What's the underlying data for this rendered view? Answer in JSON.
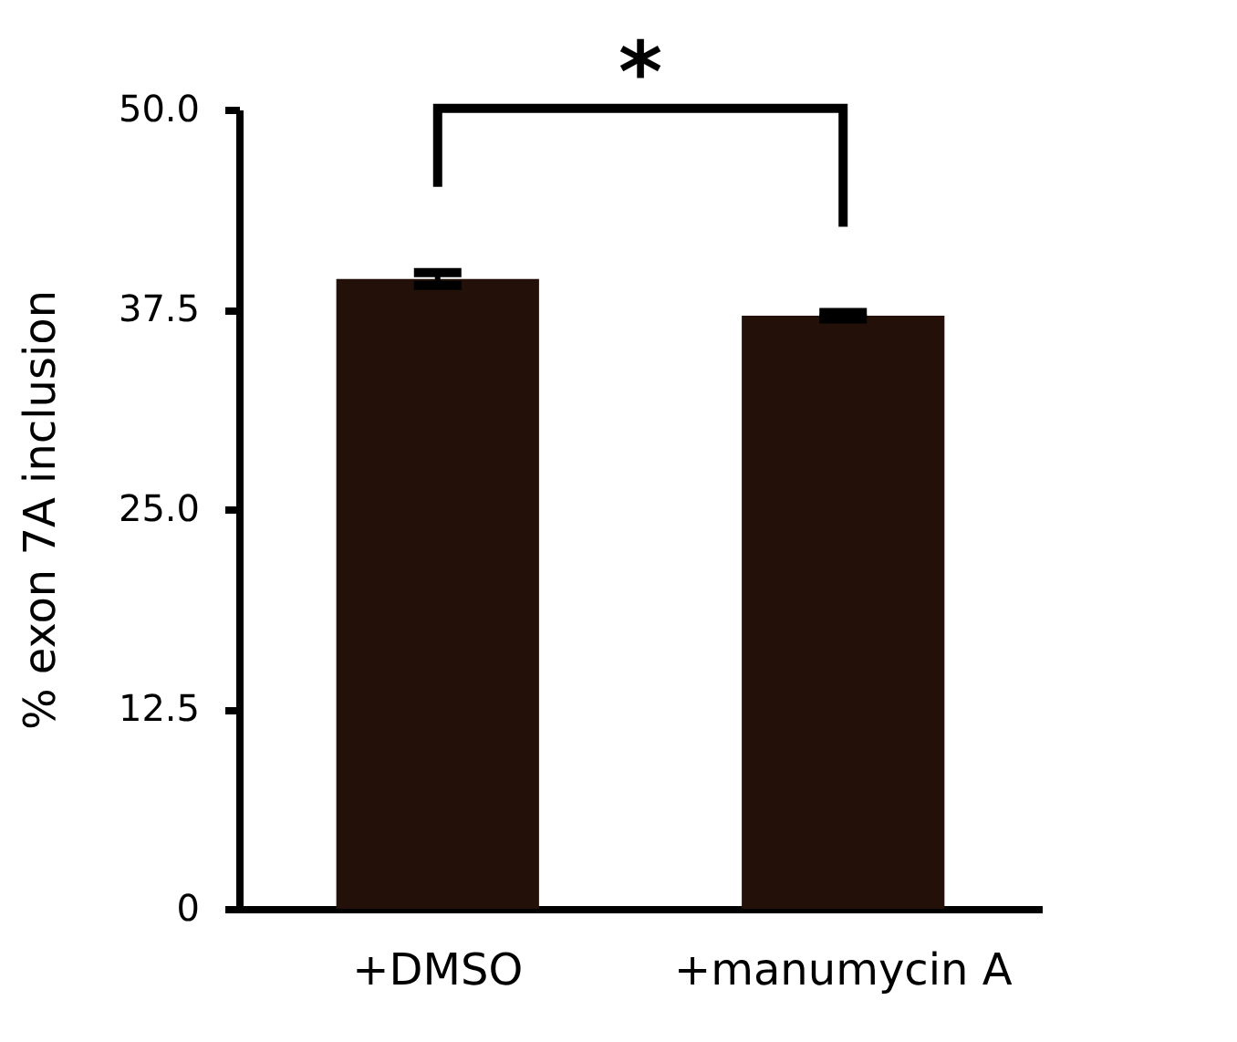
{
  "chart_data": {
    "type": "bar",
    "ylabel": "% exon 7A inclusion",
    "categories": [
      "+DMSO",
      "+manumycin A"
    ],
    "values": [
      39.4,
      37.1
    ],
    "errors": [
      0.4,
      0.2
    ],
    "color": "#231008",
    "ylim": [
      0,
      50
    ],
    "yticks": [
      {
        "value": 0,
        "label": "0"
      },
      {
        "value": 12.5,
        "label": "12.5"
      },
      {
        "value": 25,
        "label": "25.0"
      },
      {
        "value": 37.5,
        "label": "37.5"
      },
      {
        "value": 50,
        "label": "50.0"
      }
    ],
    "grid": false,
    "annotations": [
      "*"
    ]
  }
}
